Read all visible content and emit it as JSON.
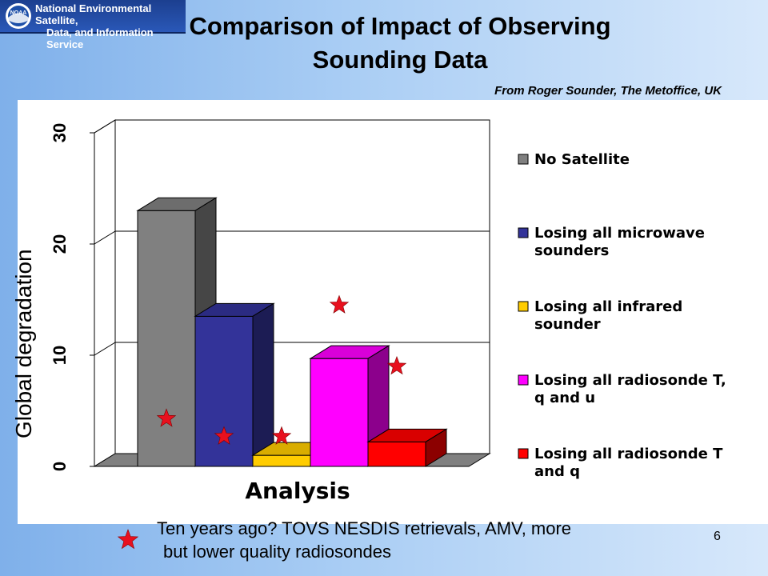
{
  "header": {
    "logo_line1": "National Environmental Satellite,",
    "logo_line2": "Data, and Information Service",
    "logo_emblem_text": "NOAA",
    "title_line1": "Comparison of Impact of Observing",
    "title_line2": "Sounding Data",
    "source": "From Roger Sounder, The Metoffice, UK"
  },
  "chart_data": {
    "type": "bar",
    "style": "3d-clustered",
    "categories": [
      "Analysis"
    ],
    "xlabel": "Analysis",
    "ylabel": "Global degradation",
    "ylim": [
      0,
      30
    ],
    "yticks": [
      "0",
      "10",
      "20",
      "30"
    ],
    "grid": true,
    "legend_position": "right",
    "series": [
      {
        "name": "No Satellite",
        "value": 23,
        "color": "#808080"
      },
      {
        "name": "Losing all microwave sounders",
        "value": 13.5,
        "color": "#333399"
      },
      {
        "name": "Losing all infrared sounder",
        "value": 1,
        "color": "#ffcc00"
      },
      {
        "name": "Losing all radiosonde T, q and u",
        "value": 9.7,
        "color": "#ff00ff"
      },
      {
        "name": "Losing all radiosonde T and q",
        "value": 2.2,
        "color": "#ff0000"
      }
    ],
    "legend_lines": [
      [
        "No Satellite"
      ],
      [
        "Losing all microwave",
        "sounders"
      ],
      [
        "Losing all infrared",
        "sounder"
      ],
      [
        "Losing all radiosonde T,",
        "q and u"
      ],
      [
        "Losing all radiosonde T",
        "and q"
      ]
    ],
    "star_markers": [
      {
        "series": "No Satellite",
        "value": 4.3
      },
      {
        "series": "Losing all microwave sounders",
        "value": 2.7
      },
      {
        "series": "Losing all infrared sounder",
        "value": 2.7
      },
      {
        "series": "Losing all radiosonde T, q and u",
        "value": 14.5
      },
      {
        "series": "Losing all radiosonde T and q",
        "value": 9
      }
    ],
    "star_color": "#e8101e"
  },
  "footnote": {
    "line1": "Ten years ago? TOVS NESDIS retrievals, AMV, more",
    "line2": "but lower quality radiosondes"
  },
  "page_number": "6"
}
